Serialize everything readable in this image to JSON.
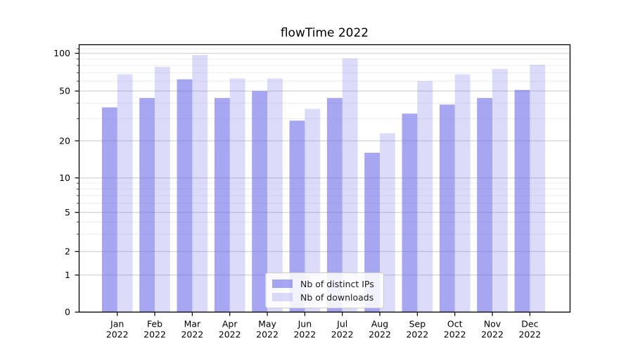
{
  "title": "flowTime 2022",
  "chart_data": {
    "type": "bar",
    "title": "flowTime 2022",
    "categories": [
      "Jan",
      "Feb",
      "Mar",
      "Apr",
      "May",
      "Jun",
      "Jul",
      "Aug",
      "Sep",
      "Oct",
      "Nov",
      "Dec"
    ],
    "category_sub": "2022",
    "series": [
      {
        "name": "Nb of distinct IPs",
        "color": "rgba(107,107,233,0.60)",
        "values": [
          37,
          44,
          62,
          44,
          50,
          29,
          44,
          16,
          33,
          39,
          44,
          51
        ]
      },
      {
        "name": "Nb of downloads",
        "color": "rgba(107,107,233,0.235)",
        "values": [
          68,
          78,
          97,
          63,
          63,
          36,
          91,
          23,
          60,
          68,
          75,
          81
        ]
      }
    ],
    "yscale": "symlog",
    "yticks": [
      0,
      1,
      2,
      5,
      10,
      20,
      50,
      100
    ],
    "yminorticks": [
      3,
      4,
      6,
      7,
      8,
      9,
      30,
      40,
      60,
      70,
      80,
      90,
      110
    ],
    "ylim": [
      0,
      116
    ],
    "xlabel": "",
    "ylabel": "",
    "grid": true,
    "legend_position": "lower center",
    "colors": {
      "bar_base": "#6b6be9",
      "grid_major": "#c9c9c9",
      "grid_minor": "#e8e8e8",
      "axis": "#000000"
    }
  },
  "legend": {
    "items": [
      {
        "label": "Nb of distinct IPs"
      },
      {
        "label": "Nb of downloads"
      }
    ]
  }
}
